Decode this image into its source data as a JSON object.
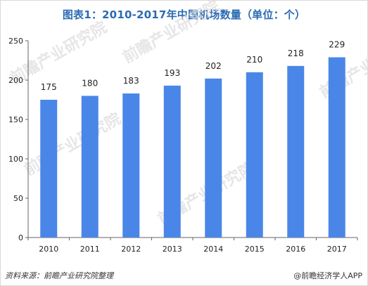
{
  "title": "图表1：2010-2017年中国机场数量（单位：个）",
  "footer": {
    "source": "资料来源：前瞻产业研究院整理",
    "brand": "@前瞻经济学人APP"
  },
  "watermark_text": "前瞻产业研究院",
  "colors": {
    "bar": "#4a86e8",
    "title": "#2a6bb3",
    "axis": "#555555"
  },
  "chart_data": {
    "type": "bar",
    "title": "图表1：2010-2017年中国机场数量（单位：个）",
    "categories": [
      "2010",
      "2011",
      "2012",
      "2013",
      "2014",
      "2015",
      "2016",
      "2017"
    ],
    "values": [
      175,
      180,
      183,
      193,
      202,
      210,
      218,
      229
    ],
    "ylim": [
      0,
      250
    ],
    "yticks": [
      0,
      50,
      100,
      150,
      200,
      250
    ],
    "grid": false,
    "data_labels": true
  }
}
